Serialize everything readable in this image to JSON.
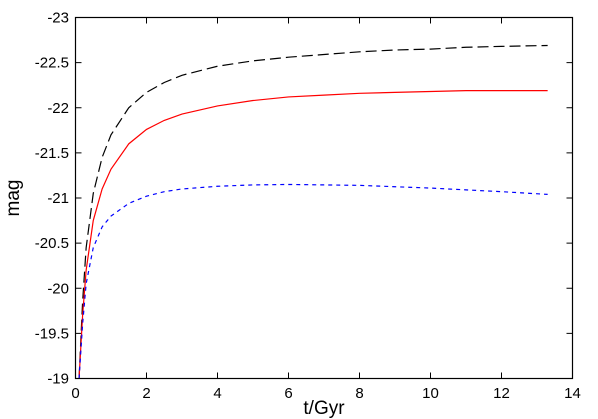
{
  "chart_data": {
    "type": "line",
    "title": "",
    "xlabel": "t/Gyr",
    "ylabel": "mag",
    "xlim": [
      0,
      14
    ],
    "ylim": [
      -19,
      -23
    ],
    "y_inverted": true,
    "grid": false,
    "legend": "none",
    "x_ticks": [
      "0",
      "2",
      "4",
      "6",
      "8",
      "10",
      "12",
      "14"
    ],
    "y_ticks": [
      "-19",
      "-19.5",
      "-20",
      "-20.5",
      "-21",
      "-21.5",
      "-22",
      "-22.5",
      "-23"
    ],
    "series": [
      {
        "style": "long-dash",
        "color": "#000000",
        "x": [
          0.1,
          0.2,
          0.3,
          0.5,
          0.75,
          1.0,
          1.5,
          2.0,
          2.5,
          3.0,
          4.0,
          5.0,
          6.0,
          7.0,
          8.0,
          9.0,
          10.0,
          11.0,
          12.0,
          13.3
        ],
        "y": [
          -18.9,
          -19.85,
          -20.45,
          -21.05,
          -21.45,
          -21.7,
          -22.0,
          -22.17,
          -22.28,
          -22.36,
          -22.46,
          -22.52,
          -22.56,
          -22.59,
          -22.62,
          -22.64,
          -22.65,
          -22.67,
          -22.68,
          -22.69
        ]
      },
      {
        "style": "solid",
        "color": "#ff0000",
        "x": [
          0.1,
          0.2,
          0.3,
          0.5,
          0.75,
          1.0,
          1.5,
          2.0,
          2.5,
          3.0,
          4.0,
          5.0,
          6.0,
          7.0,
          8.0,
          9.0,
          10.0,
          11.0,
          12.0,
          13.3
        ],
        "y": [
          -18.9,
          -19.7,
          -20.2,
          -20.75,
          -21.1,
          -21.32,
          -21.6,
          -21.76,
          -21.86,
          -21.93,
          -22.02,
          -22.08,
          -22.12,
          -22.14,
          -22.16,
          -22.17,
          -22.18,
          -22.19,
          -22.19,
          -22.19
        ]
      },
      {
        "style": "short-dash",
        "color": "#0000ff",
        "x": [
          0.1,
          0.2,
          0.3,
          0.5,
          0.75,
          1.0,
          1.5,
          2.0,
          2.5,
          3.0,
          4.0,
          5.0,
          6.0,
          7.0,
          8.0,
          9.0,
          10.0,
          11.0,
          12.0,
          13.3
        ],
        "y": [
          -18.9,
          -19.6,
          -20.05,
          -20.45,
          -20.68,
          -20.8,
          -20.94,
          -21.02,
          -21.07,
          -21.1,
          -21.13,
          -21.145,
          -21.15,
          -21.145,
          -21.14,
          -21.125,
          -21.11,
          -21.09,
          -21.07,
          -21.04
        ]
      }
    ]
  }
}
